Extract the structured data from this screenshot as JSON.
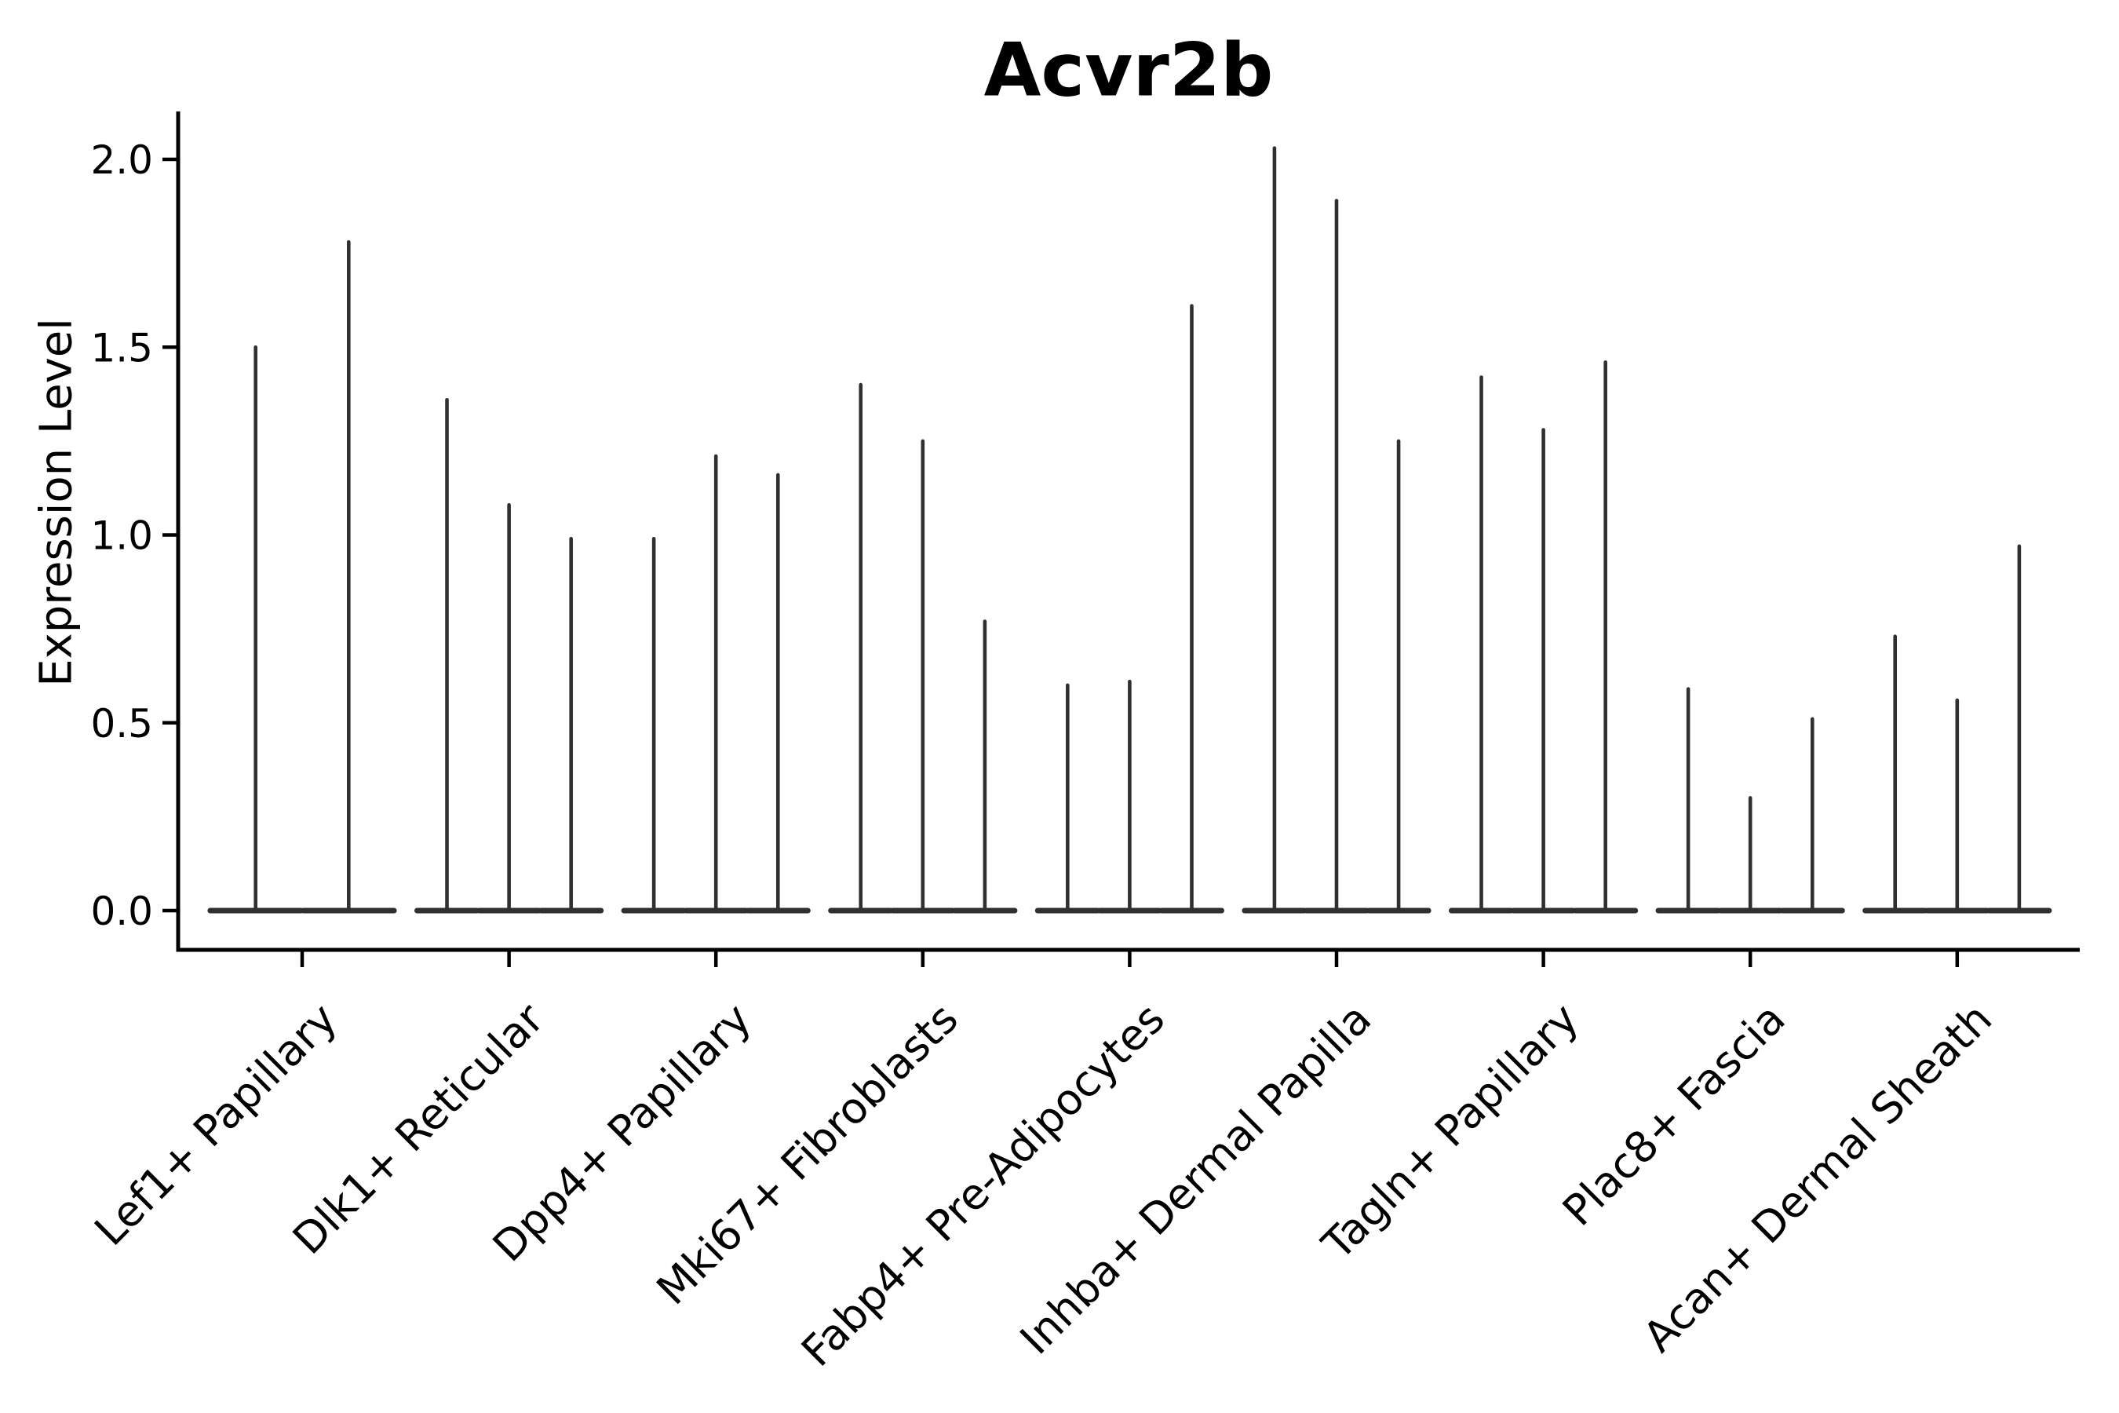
{
  "chart_data": {
    "type": "violin",
    "title": "Acvr2b",
    "xlabel": "",
    "ylabel": "Expression Level",
    "ylim": [
      -0.1,
      2.13
    ],
    "yticks": [
      0.0,
      0.5,
      1.0,
      1.5,
      2.0
    ],
    "ytick_labels": [
      "0.0",
      "0.5",
      "1.0",
      "1.5",
      "2.0"
    ],
    "categories": [
      "Lef1+ Papillary",
      "Dlk1+ Reticular",
      "Dpp4+ Papillary",
      "Mki67+ Fibroblasts",
      "Fabp4+ Pre-Adipocytes",
      "Inhba+ Dermal Papilla",
      "Tagln+ Papillary",
      "Plac8+ Fascia",
      "Acan+ Dermal Sheath"
    ],
    "groups": [
      {
        "category": "Lef1+ Papillary",
        "violin_peaks": [
          1.5,
          1.78
        ]
      },
      {
        "category": "Dlk1+ Reticular",
        "violin_peaks": [
          1.36,
          1.08,
          0.99
        ]
      },
      {
        "category": "Dpp4+ Papillary",
        "violin_peaks": [
          0.99,
          1.21,
          1.16
        ]
      },
      {
        "category": "Mki67+ Fibroblasts",
        "violin_peaks": [
          1.4,
          1.25,
          0.77
        ]
      },
      {
        "category": "Fabp4+ Pre-Adipocytes",
        "violin_peaks": [
          0.6,
          0.61,
          1.61
        ]
      },
      {
        "category": "Inhba+ Dermal Papilla",
        "violin_peaks": [
          2.03,
          1.89,
          1.25
        ]
      },
      {
        "category": "Tagln+ Papillary",
        "violin_peaks": [
          1.42,
          1.28,
          1.46
        ]
      },
      {
        "category": "Plac8+ Fascia",
        "violin_peaks": [
          0.59,
          0.3,
          0.51
        ]
      },
      {
        "category": "Acan+ Dermal Sheath",
        "violin_peaks": [
          0.73,
          0.56,
          0.97
        ]
      }
    ],
    "legend": "none",
    "grid": false,
    "colors": {
      "violin": "#303030",
      "axis": "#000000",
      "text": "#000000",
      "background": "#ffffff"
    },
    "style_notes": "Each cluster shows 2-3 needle-thin violins: a flat rounded base at expression 0 and a hairline spike rising to the maximum expression value."
  }
}
